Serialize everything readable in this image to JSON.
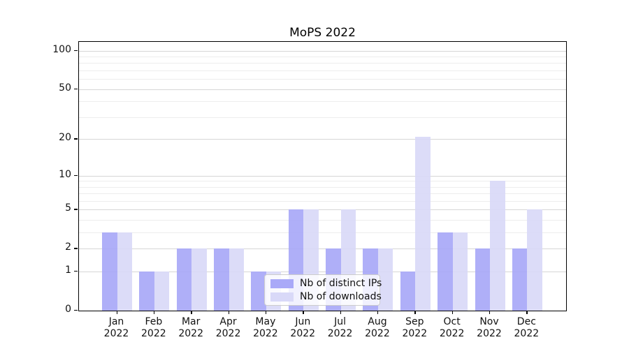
{
  "title": "MoPS 2022",
  "chart_data": {
    "type": "bar",
    "title": "MoPS 2022",
    "categories": [
      "Jan",
      "Feb",
      "Mar",
      "Apr",
      "May",
      "Jun",
      "Jul",
      "Aug",
      "Sep",
      "Oct",
      "Nov",
      "Dec"
    ],
    "year_label": "2022",
    "series": [
      {
        "name": "Nb of distinct IPs",
        "color": "#a9a9f8",
        "values": [
          3,
          1,
          2,
          2,
          1,
          5,
          2,
          2,
          1,
          3,
          2,
          2
        ]
      },
      {
        "name": "Nb of downloads",
        "color": "#d9d9f8",
        "values": [
          3,
          1,
          2,
          2,
          1,
          5,
          5,
          2,
          21,
          3,
          9,
          5
        ]
      }
    ],
    "xlabel": "",
    "ylabel": "",
    "y_scale": "log1p",
    "y_ticks": [
      100,
      50,
      20,
      10,
      5,
      2,
      1,
      0
    ],
    "y_minor_gridlines": [
      3,
      4,
      6,
      7,
      8,
      9,
      30,
      40,
      60,
      70,
      80,
      90
    ],
    "ylim": [
      0,
      116
    ],
    "grid": "on",
    "legend_position": "lower center"
  }
}
